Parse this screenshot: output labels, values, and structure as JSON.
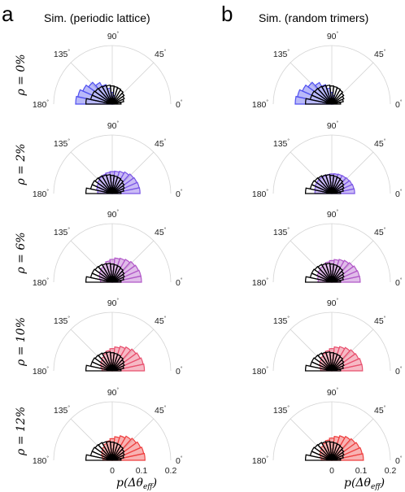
{
  "figure": {
    "panels": [
      {
        "letter": "a",
        "title": "Sim. (periodic lattice)"
      },
      {
        "letter": "b",
        "title": "Sim. (random trimers)"
      }
    ],
    "angle_labels": [
      "180°",
      "135°",
      "90°",
      "45°",
      "0°"
    ],
    "tick_labels": [
      "0",
      "0.1",
      "0.2"
    ],
    "xlabel": "p(Δθ_eff)",
    "xlabel_main": "p(Δθ",
    "xlabel_sub": "eff",
    "xlabel_close": ")"
  },
  "chart_data": {
    "type": "polar-histogram",
    "xlabel": "p(Δθ_eff)",
    "radial_ticks": [
      0,
      0.1,
      0.2
    ],
    "r_max": 0.2,
    "bin_edges_deg": [
      0,
      12,
      24,
      36,
      48,
      60,
      72,
      84,
      96,
      108,
      120,
      132,
      144,
      156,
      168,
      180
    ],
    "reference_histogram": {
      "style": "black outline",
      "values": [
        0.03,
        0.04,
        0.045,
        0.05,
        0.055,
        0.058,
        0.06,
        0.062,
        0.065,
        0.067,
        0.07,
        0.072,
        0.075,
        0.075,
        0.09
      ]
    },
    "rows": [
      {
        "label": "ρ = 0%",
        "rho_text": "ρ = 0%",
        "color": "#5050f0",
        "a": [
          0.006,
          0.008,
          0.01,
          0.012,
          0.016,
          0.022,
          0.03,
          0.04,
          0.055,
          0.07,
          0.085,
          0.1,
          0.11,
          0.12,
          0.125
        ],
        "b": [
          0.006,
          0.008,
          0.01,
          0.012,
          0.016,
          0.022,
          0.03,
          0.04,
          0.055,
          0.07,
          0.085,
          0.1,
          0.11,
          0.12,
          0.125
        ]
      },
      {
        "label": "ρ = 2%",
        "rho_text": "ρ = 2%",
        "color": "#7a55e6",
        "a": [
          0.095,
          0.094,
          0.092,
          0.09,
          0.085,
          0.08,
          0.077,
          0.075,
          0.073,
          0.07,
          0.067,
          0.063,
          0.058,
          0.055,
          0.05
        ],
        "b": [
          0.078,
          0.077,
          0.075,
          0.073,
          0.071,
          0.07,
          0.068,
          0.067,
          0.066,
          0.065,
          0.065,
          0.064,
          0.063,
          0.06,
          0.058
        ]
      },
      {
        "label": "ρ = 6%",
        "rho_text": "ρ = 6%",
        "color": "#b158c8",
        "a": [
          0.1,
          0.1,
          0.098,
          0.095,
          0.09,
          0.086,
          0.083,
          0.078,
          0.073,
          0.067,
          0.06,
          0.055,
          0.05,
          0.045,
          0.04
        ],
        "b": [
          0.097,
          0.096,
          0.094,
          0.09,
          0.086,
          0.082,
          0.078,
          0.074,
          0.07,
          0.066,
          0.062,
          0.058,
          0.055,
          0.05,
          0.047
        ]
      },
      {
        "label": "ρ = 10%",
        "rho_text": "ρ = 10%",
        "color": "#e8506e",
        "a": [
          0.11,
          0.108,
          0.104,
          0.1,
          0.094,
          0.088,
          0.082,
          0.076,
          0.07,
          0.063,
          0.056,
          0.05,
          0.045,
          0.04,
          0.035
        ],
        "b": [
          0.105,
          0.104,
          0.1,
          0.097,
          0.092,
          0.087,
          0.082,
          0.076,
          0.07,
          0.064,
          0.058,
          0.052,
          0.047,
          0.042,
          0.038
        ]
      },
      {
        "label": "ρ = 12%",
        "rho_text": "ρ = 12%",
        "color": "#ee3f3f",
        "a": [
          0.112,
          0.11,
          0.106,
          0.101,
          0.095,
          0.088,
          0.081,
          0.074,
          0.067,
          0.06,
          0.053,
          0.047,
          0.041,
          0.036,
          0.032
        ],
        "b": [
          0.108,
          0.106,
          0.103,
          0.099,
          0.094,
          0.088,
          0.082,
          0.076,
          0.07,
          0.063,
          0.057,
          0.051,
          0.046,
          0.041,
          0.036
        ]
      }
    ]
  }
}
